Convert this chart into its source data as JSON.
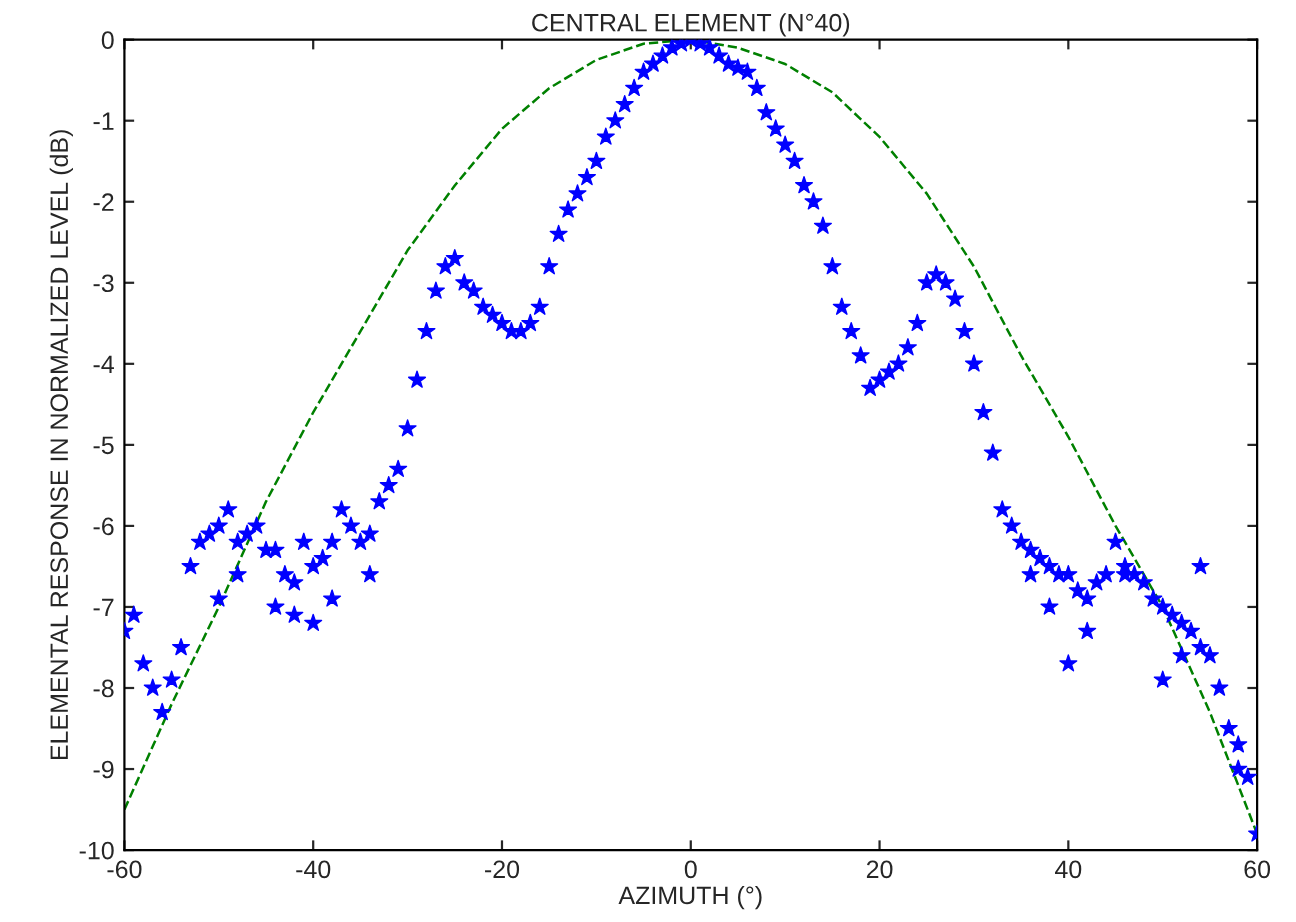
{
  "chart_data": {
    "type": "scatter",
    "title": "CENTRAL ELEMENT (N°40)",
    "xlabel": "AZIMUTH (°)",
    "ylabel": "ELEMENTAL RESPONSE IN NORMALIZED LEVEL (dB)",
    "xlim": [
      -60,
      60
    ],
    "ylim": [
      -10,
      0
    ],
    "xticks": [
      -60,
      -40,
      -20,
      0,
      20,
      40,
      60
    ],
    "yticks": [
      -10,
      -9,
      -8,
      -7,
      -6,
      -5,
      -4,
      -3,
      -2,
      -1,
      0
    ],
    "grid": false,
    "legend": false,
    "series": [
      {
        "color": "#0000ff",
        "marker": "star",
        "x": [
          -60,
          -59,
          -58,
          -57,
          -56,
          -55,
          -54,
          -53,
          -52,
          -51,
          -50,
          -49,
          -48,
          -47,
          -46,
          -45,
          -44,
          -43,
          -42,
          -41,
          -40,
          -39,
          -38,
          -37,
          -36,
          -35,
          -34,
          -33,
          -32,
          -31,
          -30,
          -29,
          -28,
          -27,
          -26,
          -25,
          -24,
          -23,
          -22,
          -21,
          -20,
          -19,
          -18,
          -17,
          -16,
          -15,
          -14,
          -13,
          -12,
          -11,
          -10,
          -9,
          -8,
          -7,
          -6,
          -5,
          -4,
          -3,
          -2,
          -1,
          0,
          1,
          2,
          3,
          4,
          5,
          6,
          7,
          8,
          9,
          10,
          11,
          12,
          13,
          14,
          15,
          16,
          17,
          18,
          19,
          20,
          21,
          22,
          23,
          24,
          25,
          26,
          27,
          28,
          29,
          30,
          31,
          32,
          33,
          34,
          35,
          36,
          37,
          38,
          39,
          40,
          41,
          42,
          43,
          44,
          45,
          46,
          47,
          48,
          49,
          50,
          51,
          52,
          53,
          54,
          55,
          56,
          57,
          58,
          59,
          60,
          -50,
          -48,
          -44,
          -42,
          -40,
          -38,
          -34,
          36,
          38,
          40,
          42,
          46,
          50,
          52,
          54,
          58
        ],
        "values": [
          -7.3,
          -7.1,
          -7.7,
          -8.0,
          -8.3,
          -7.9,
          -7.5,
          -6.5,
          -6.2,
          -6.1,
          -6.0,
          -5.8,
          -6.2,
          -6.1,
          -6.0,
          -6.3,
          -6.3,
          -6.6,
          -6.7,
          -6.2,
          -6.5,
          -6.4,
          -6.2,
          -5.8,
          -6.0,
          -6.2,
          -6.1,
          -5.7,
          -5.5,
          -5.3,
          -4.8,
          -4.2,
          -3.6,
          -3.1,
          -2.8,
          -2.7,
          -3.0,
          -3.1,
          -3.3,
          -3.4,
          -3.5,
          -3.6,
          -3.6,
          -3.5,
          -3.3,
          -2.8,
          -2.4,
          -2.1,
          -1.9,
          -1.7,
          -1.5,
          -1.2,
          -1.0,
          -0.8,
          -0.6,
          -0.4,
          -0.3,
          -0.2,
          -0.1,
          -0.05,
          0.0,
          -0.05,
          -0.1,
          -0.2,
          -0.3,
          -0.35,
          -0.4,
          -0.6,
          -0.9,
          -1.1,
          -1.3,
          -1.5,
          -1.8,
          -2.0,
          -2.3,
          -2.8,
          -3.3,
          -3.6,
          -3.9,
          -4.3,
          -4.2,
          -4.1,
          -4.0,
          -3.8,
          -3.5,
          -3.0,
          -2.9,
          -3.0,
          -3.2,
          -3.6,
          -4.0,
          -4.6,
          -5.1,
          -5.8,
          -6.0,
          -6.2,
          -6.3,
          -6.4,
          -6.5,
          -6.6,
          -6.6,
          -6.8,
          -6.9,
          -6.7,
          -6.6,
          -6.2,
          -6.5,
          -6.6,
          -6.7,
          -6.9,
          -7.0,
          -7.1,
          -7.2,
          -7.3,
          -7.5,
          -7.6,
          -8.0,
          -8.5,
          -8.7,
          -9.1,
          -9.8,
          -6.9,
          -6.6,
          -7.0,
          -7.1,
          -7.2,
          -6.9,
          -6.6,
          -6.6,
          -7.0,
          -7.7,
          -7.3,
          -6.6,
          -7.9,
          -7.6,
          -6.5,
          -9.0
        ]
      },
      {
        "type": "line",
        "color": "#008000",
        "line_style": "dashed",
        "marker": "none",
        "x": [
          -60,
          -55,
          -50,
          -45,
          -40,
          -35,
          -30,
          -25,
          -20,
          -15,
          -10,
          -5,
          0,
          5,
          10,
          15,
          20,
          25,
          30,
          35,
          40,
          45,
          50,
          55,
          60
        ],
        "values": [
          -9.5,
          -8.2,
          -7.0,
          -5.7,
          -4.6,
          -3.6,
          -2.6,
          -1.8,
          -1.1,
          -0.6,
          -0.25,
          -0.05,
          0.0,
          -0.1,
          -0.3,
          -0.65,
          -1.2,
          -1.9,
          -2.8,
          -3.9,
          -4.9,
          -6.0,
          -7.0,
          -8.3,
          -9.8
        ]
      }
    ]
  }
}
